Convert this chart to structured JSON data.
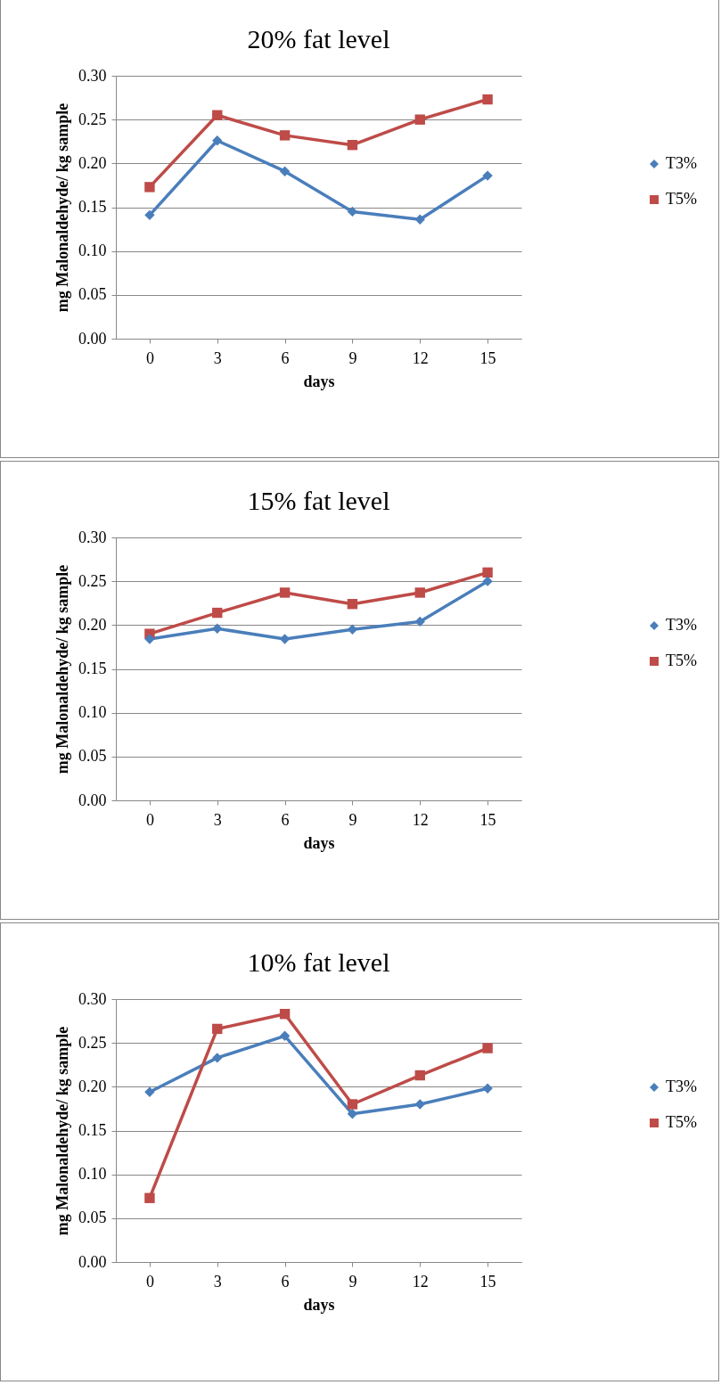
{
  "chart_data": [
    {
      "type": "line",
      "title": "20% fat level",
      "xlabel": "days",
      "ylabel": "mg  Malonaldehyde/ kg sample",
      "categories": [
        "0",
        "3",
        "6",
        "9",
        "12",
        "15"
      ],
      "ylim": [
        0,
        0.3
      ],
      "yticks": [
        {
          "value": 0,
          "label": "0.00"
        },
        0.05,
        {
          "value": 0.1,
          "label": "0.10"
        },
        0.15,
        {
          "value": 0.2,
          "label": "0.20"
        },
        0.25,
        {
          "value": 0.3,
          "label": "0.30"
        }
      ],
      "grid": "y",
      "legend": "right",
      "series": [
        {
          "name": "T3%",
          "color": "#4a7ebb",
          "marker": "diamond",
          "values": [
            0.141,
            0.226,
            0.191,
            0.145,
            0.136,
            0.186
          ]
        },
        {
          "name": "T5%",
          "color": "#be4b48",
          "marker": "square",
          "values": [
            0.173,
            0.255,
            0.232,
            0.221,
            0.25,
            0.273
          ]
        }
      ]
    },
    {
      "type": "line",
      "title": "15% fat level",
      "xlabel": "days",
      "ylabel": "mg Malonaldehyde/ kg sample",
      "categories": [
        "0",
        "3",
        "6",
        "9",
        "12",
        "15"
      ],
      "ylim": [
        0,
        0.3
      ],
      "yticks": [
        {
          "value": 0,
          "label": "0.00"
        },
        0.05,
        {
          "value": 0.1,
          "label": "0.10"
        },
        0.15,
        {
          "value": 0.2,
          "label": "0.20"
        },
        0.25,
        {
          "value": 0.3,
          "label": "0.30"
        }
      ],
      "grid": "y",
      "legend": "right",
      "series": [
        {
          "name": "T3%",
          "color": "#4a7ebb",
          "marker": "diamond",
          "values": [
            0.184,
            0.196,
            0.184,
            0.195,
            0.204,
            0.25
          ]
        },
        {
          "name": "T5%",
          "color": "#be4b48",
          "marker": "square",
          "values": [
            0.19,
            0.214,
            0.237,
            0.224,
            0.237,
            0.26
          ]
        }
      ]
    },
    {
      "type": "line",
      "title": "10% fat level",
      "xlabel": "days",
      "ylabel": "mg Malonaldehyde/ kg sample",
      "categories": [
        "0",
        "3",
        "6",
        "9",
        "12",
        "15"
      ],
      "ylim": [
        0,
        0.3
      ],
      "yticks": [
        {
          "value": 0,
          "label": "0.00"
        },
        0.05,
        {
          "value": 0.1,
          "label": "0.10"
        },
        0.15,
        {
          "value": 0.2,
          "label": "0.20"
        },
        0.25,
        {
          "value": 0.3,
          "label": "0.30"
        }
      ],
      "grid": "y",
      "legend": "right",
      "series": [
        {
          "name": "T3%",
          "color": "#4a7ebb",
          "marker": "diamond",
          "values": [
            0.194,
            0.233,
            0.258,
            0.169,
            0.18,
            0.198
          ]
        },
        {
          "name": "T5%",
          "color": "#be4b48",
          "marker": "square",
          "values": [
            0.073,
            0.266,
            0.283,
            0.18,
            0.213,
            0.244
          ]
        }
      ]
    }
  ]
}
